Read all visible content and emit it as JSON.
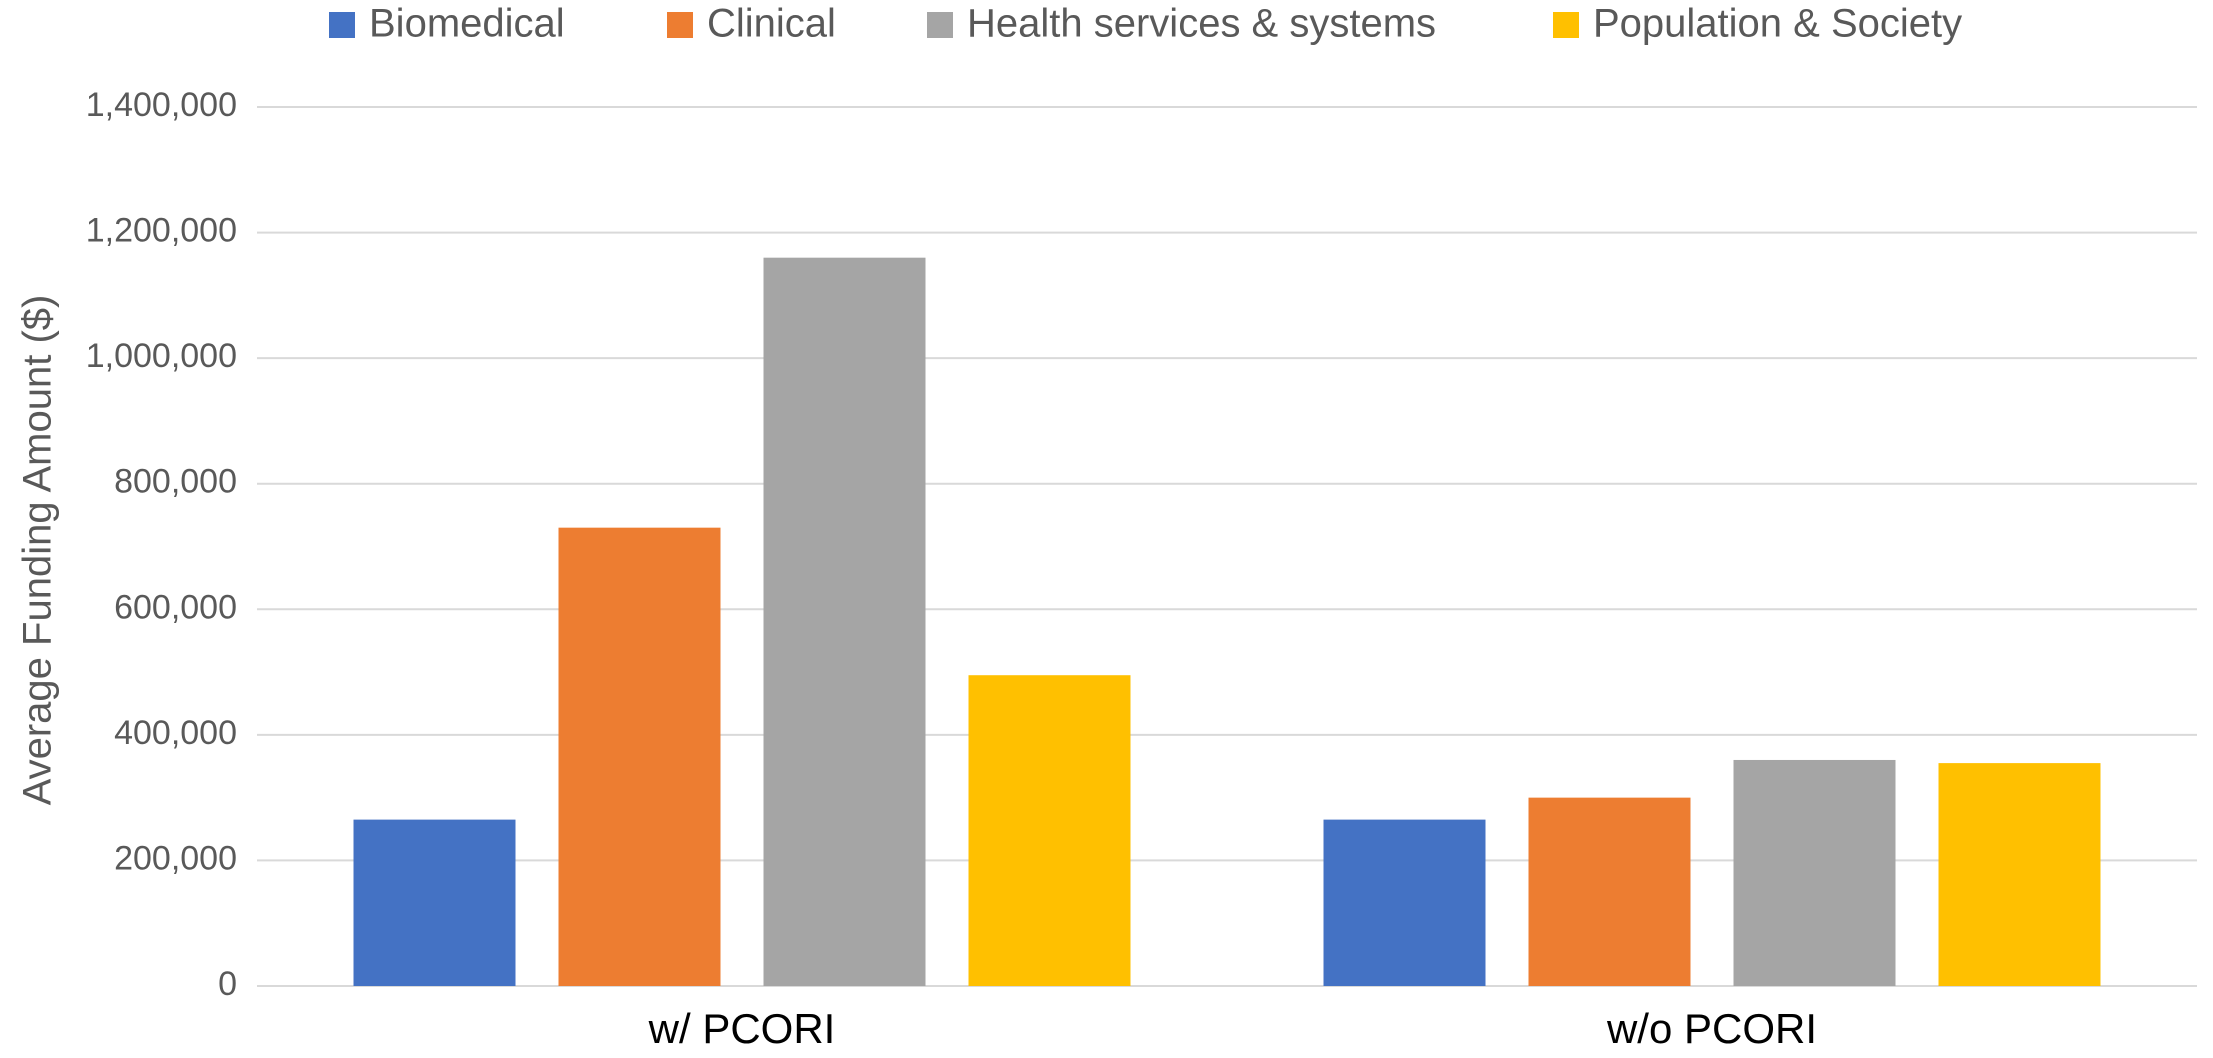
{
  "chart_data": {
    "type": "bar",
    "categories": [
      "w/ PCORI",
      "w/o PCORI"
    ],
    "series": [
      {
        "name": "Biomedical",
        "color": "#4472c4",
        "values": [
          265000,
          265000
        ]
      },
      {
        "name": "Clinical",
        "color": "#ed7d31",
        "values": [
          730000,
          300000
        ]
      },
      {
        "name": "Health services & systems",
        "color": "#a5a5a5",
        "values": [
          1160000,
          360000
        ]
      },
      {
        "name": "Population & Society",
        "color": "#ffc000",
        "values": [
          495000,
          355000
        ]
      }
    ],
    "y_label": "Average Funding Amount ($)",
    "ylim": [
      0,
      1400000
    ],
    "yticks": [
      0,
      {
        "value": 200000,
        "label": "200,000"
      },
      {
        "value": 400000,
        "label": "400,000"
      },
      {
        "value": 600000,
        "label": "600,000"
      },
      {
        "value": 800000,
        "label": "800,000"
      },
      {
        "value": 1000000,
        "label": "1,000,000"
      },
      {
        "value": 1200000,
        "label": "1,200,000"
      },
      {
        "value": 1400000,
        "label": "1,400,000"
      }
    ],
    "grid": true,
    "legend": "top"
  }
}
